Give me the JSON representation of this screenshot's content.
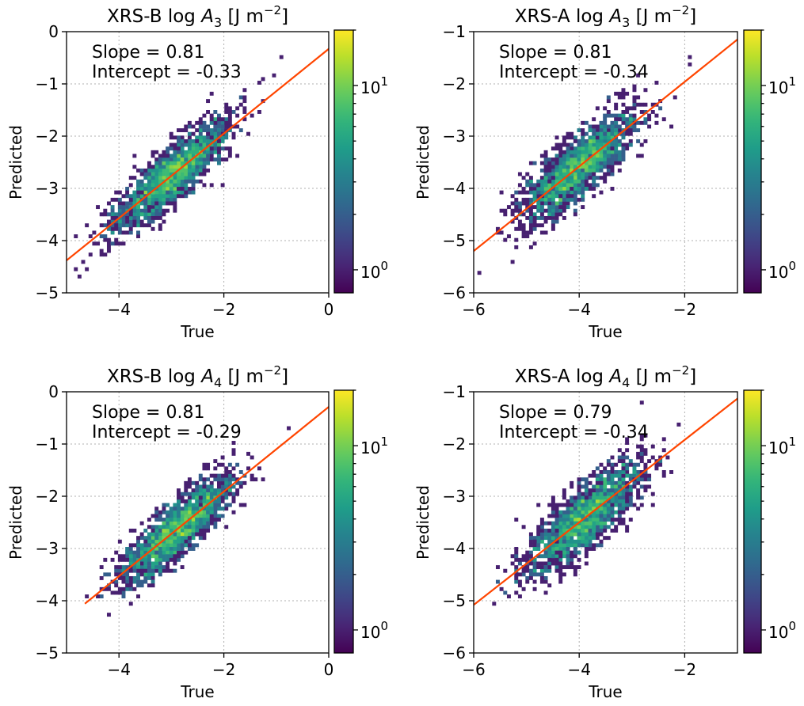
{
  "chart_data": [
    {
      "type": "heatmap",
      "title_prefix": "XRS-B log ",
      "title_var": "A",
      "title_sub": "3",
      "title_unit_pre": " [J m",
      "title_unit_sup": "−2",
      "title_unit_post": "]",
      "xlabel": "True",
      "ylabel": "Predicted",
      "xlim": [
        -5,
        0
      ],
      "ylim": [
        -5,
        0
      ],
      "xticks": [
        -4,
        -2,
        0
      ],
      "yticks": [
        -5,
        -4,
        -3,
        -2,
        -1,
        0
      ],
      "xtick_labels": [
        "−4",
        "−2",
        "0"
      ],
      "ytick_labels": [
        "−5",
        "−4",
        "−3",
        "−2",
        "−1",
        "0"
      ],
      "slope_text": "Slope = 0.81",
      "intercept_text": "Intercept = -0.33",
      "slope": 0.81,
      "intercept": -0.33,
      "fit_x_range": [
        -5,
        0
      ],
      "data_x_range": [
        -4.9,
        -0.3
      ],
      "center_x": -3.0,
      "spread": 0.28,
      "colorbar": {
        "scale": "log",
        "min": 0.75,
        "max": 20,
        "tick_base": "10",
        "tick_exps": [
          "0",
          "1"
        ],
        "tick_values": [
          1,
          10
        ]
      },
      "grid": true
    },
    {
      "type": "heatmap",
      "title_prefix": "XRS-A log ",
      "title_var": "A",
      "title_sub": "3",
      "title_unit_pre": " [J m",
      "title_unit_sup": "−2",
      "title_unit_post": "]",
      "xlabel": "True",
      "ylabel": "Predicted",
      "xlim": [
        -6,
        -1
      ],
      "ylim": [
        -6,
        -1
      ],
      "xticks": [
        -6,
        -4,
        -2
      ],
      "yticks": [
        -6,
        -5,
        -4,
        -3,
        -2,
        -1
      ],
      "xtick_labels": [
        "−6",
        "−4",
        "−2"
      ],
      "ytick_labels": [
        "−6",
        "−5",
        "−4",
        "−3",
        "−2",
        "−1"
      ],
      "slope_text": "Slope = 0.81",
      "intercept_text": "Intercept = -0.34",
      "slope": 0.81,
      "intercept": -0.34,
      "fit_x_range": [
        -6,
        -1
      ],
      "data_x_range": [
        -6,
        -1.3
      ],
      "center_x": -4.0,
      "spread": 0.3,
      "colorbar": {
        "scale": "log",
        "min": 0.75,
        "max": 20,
        "tick_base": "10",
        "tick_exps": [
          "0",
          "1"
        ],
        "tick_values": [
          1,
          10
        ]
      },
      "grid": true
    },
    {
      "type": "heatmap",
      "title_prefix": "XRS-B log ",
      "title_var": "A",
      "title_sub": "4",
      "title_unit_pre": " [J m",
      "title_unit_sup": "−2",
      "title_unit_post": "]",
      "xlabel": "True",
      "ylabel": "Predicted",
      "xlim": [
        -5,
        0
      ],
      "ylim": [
        -5,
        0
      ],
      "xticks": [
        -4,
        -2,
        0
      ],
      "yticks": [
        -5,
        -4,
        -3,
        -2,
        -1,
        0
      ],
      "xtick_labels": [
        "−4",
        "−2",
        "0"
      ],
      "ytick_labels": [
        "−5",
        "−4",
        "−3",
        "−2",
        "−1",
        "0"
      ],
      "slope_text": "Slope = 0.81",
      "intercept_text": "Intercept = -0.29",
      "slope": 0.81,
      "intercept": -0.29,
      "fit_x_range": [
        -4.65,
        0
      ],
      "data_x_range": [
        -4.6,
        -0.1
      ],
      "center_x": -2.9,
      "spread": 0.27,
      "colorbar": {
        "scale": "log",
        "min": 0.75,
        "max": 20,
        "tick_base": "10",
        "tick_exps": [
          "0",
          "1"
        ],
        "tick_values": [
          1,
          10
        ]
      },
      "grid": true
    },
    {
      "type": "heatmap",
      "title_prefix": "XRS-A log ",
      "title_var": "A",
      "title_sub": "4",
      "title_unit_pre": " [J m",
      "title_unit_sup": "−2",
      "title_unit_post": "]",
      "xlabel": "True",
      "ylabel": "Predicted",
      "xlim": [
        -6,
        -1
      ],
      "ylim": [
        -6,
        -1
      ],
      "xticks": [
        -6,
        -4,
        -2
      ],
      "yticks": [
        -6,
        -5,
        -4,
        -3,
        -2,
        -1
      ],
      "xtick_labels": [
        "−6",
        "−4",
        "−2"
      ],
      "ytick_labels": [
        "−6",
        "−5",
        "−4",
        "−3",
        "−2",
        "−1"
      ],
      "slope_text": "Slope = 0.79",
      "intercept_text": "Intercept = -0.34",
      "slope": 0.79,
      "intercept": -0.34,
      "fit_x_range": [
        -6,
        -1
      ],
      "data_x_range": [
        -5.9,
        -1.4
      ],
      "center_x": -3.9,
      "spread": 0.32,
      "colorbar": {
        "scale": "log",
        "min": 0.75,
        "max": 20,
        "tick_base": "10",
        "tick_exps": [
          "0",
          "1"
        ],
        "tick_values": [
          1,
          10
        ]
      },
      "grid": true
    }
  ],
  "colors": {
    "fit_line": "#ff4500",
    "colormap": "viridis",
    "grid": "#b0b0b0"
  }
}
